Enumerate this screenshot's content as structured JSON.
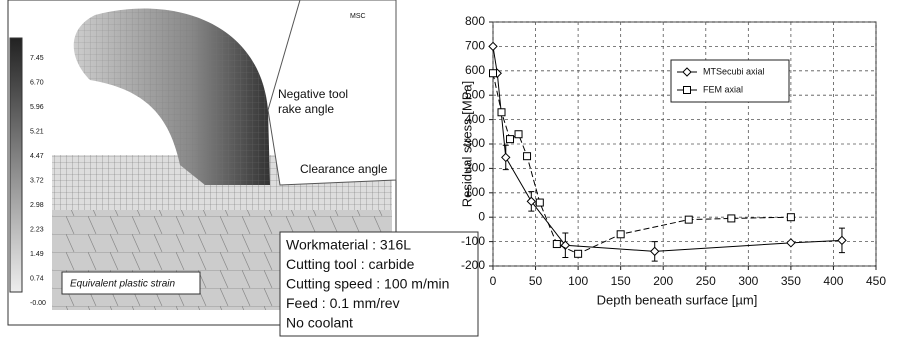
{
  "figure": {
    "logo": "MSC",
    "colorbar_labels": [
      "7.45",
      "6.70",
      "5.96",
      "5.21",
      "4.47",
      "3.72",
      "2.98",
      "2.23",
      "1.49",
      "0.74",
      "-0.00"
    ],
    "rake_label": [
      "Negative tool",
      "rake angle"
    ],
    "clearance_label": "Clearance angle",
    "legend_label": "Equivalent plastic strain",
    "info_box": [
      "Workmaterial : 316L",
      "Cutting tool : carbide",
      "Cutting speed : 100 m/min",
      "Feed : 0.1 mm/rev",
      "No coolant"
    ]
  },
  "chart_data": {
    "type": "line",
    "xlabel": "Depth beneath surface [µm]",
    "ylabel": "Residual stress [MPa]",
    "xlim": [
      0,
      450
    ],
    "xticks": [
      0,
      50,
      100,
      150,
      200,
      250,
      300,
      350,
      400,
      450
    ],
    "ylim": [
      -200,
      800
    ],
    "yticks": [
      -200,
      -100,
      0,
      100,
      200,
      300,
      400,
      500,
      600,
      700,
      800
    ],
    "grid": true,
    "legend": "upper right",
    "series": [
      {
        "name": "MTSecubi axial",
        "color": "#000000",
        "marker": "diamond",
        "x": [
          0,
          5,
          15,
          45,
          85,
          190,
          350,
          410
        ],
        "values": [
          700,
          590,
          245,
          65,
          -115,
          -140,
          -105,
          -95
        ],
        "errors": [
          null,
          null,
          50,
          40,
          50,
          40,
          null,
          50
        ]
      },
      {
        "name": "FEM axial",
        "color": "#000000",
        "marker": "square",
        "x": [
          0,
          10,
          20,
          30,
          40,
          55,
          75,
          100,
          150,
          230,
          280,
          350
        ],
        "values": [
          590,
          430,
          320,
          340,
          250,
          60,
          -110,
          -150,
          -70,
          -10,
          -5,
          0
        ]
      }
    ]
  }
}
